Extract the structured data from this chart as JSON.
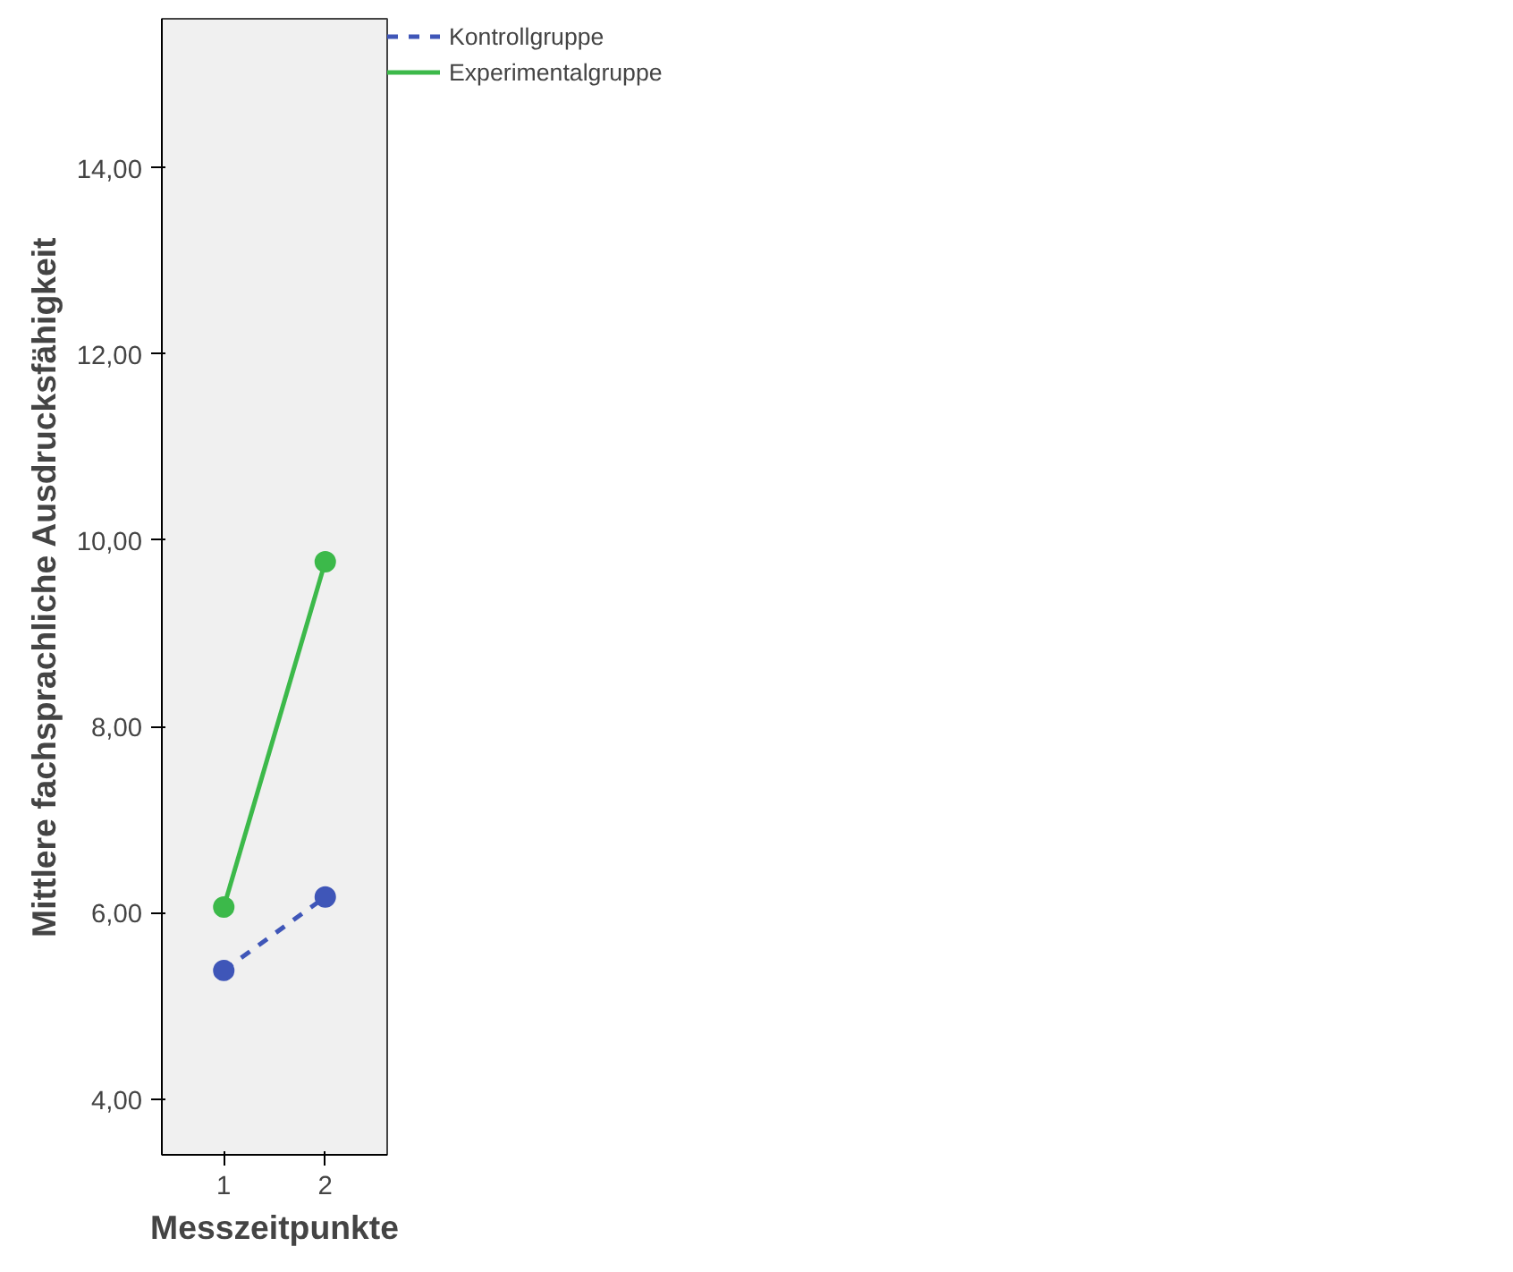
{
  "chart_data": {
    "type": "line",
    "xlabel": "Messzeitpunkte",
    "ylabel": "Mittlere fachsprachliche Ausdrucksfähigkeit",
    "x": [
      1,
      2
    ],
    "series": [
      {
        "name": "Kontrollgruppe",
        "color": "#3f56b8",
        "values": [
          5.38,
          6.17
        ],
        "line_style": "dashed"
      },
      {
        "name": "Experimentalgruppe",
        "color": "#3cb94a",
        "values": [
          6.06,
          9.77
        ],
        "line_style": "solid"
      }
    ],
    "xlim": [
      0.39,
      2.61
    ],
    "ylim": [
      3.4,
      15.6
    ],
    "xticks": [
      1,
      2
    ],
    "yticks": [
      {
        "value": 4,
        "label": "4,00"
      },
      {
        "value": 6,
        "label": "6,00"
      },
      {
        "value": 8,
        "label": "8,00"
      },
      {
        "value": 10,
        "label": "10,00"
      },
      {
        "value": 12,
        "label": "12,00"
      },
      {
        "value": 14,
        "label": "14,00"
      }
    ],
    "grid": false,
    "legend": "top right",
    "marker": "circle"
  }
}
